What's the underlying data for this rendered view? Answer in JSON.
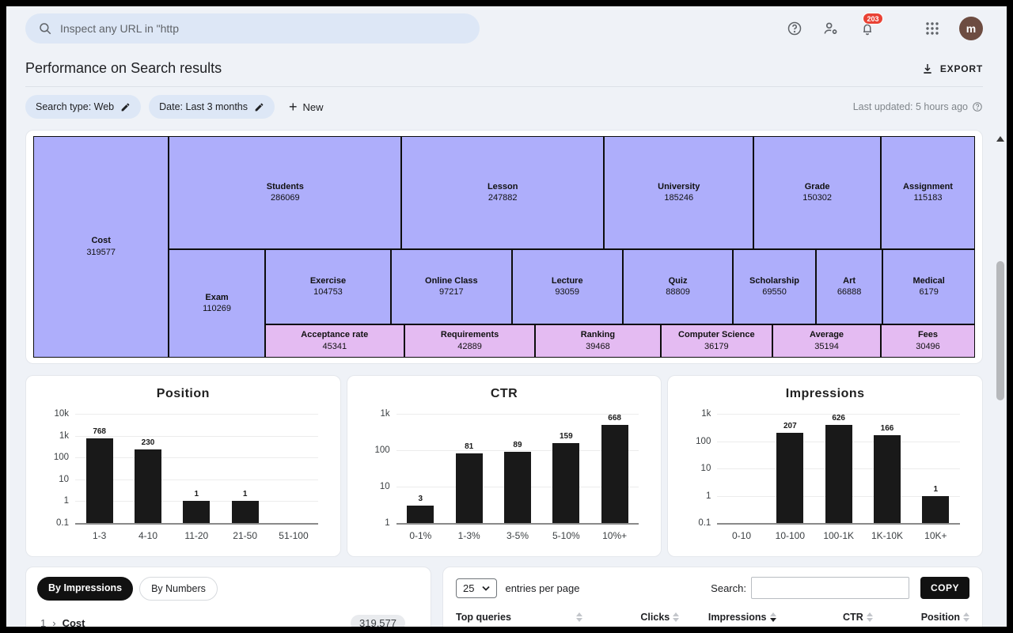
{
  "colors": {
    "treemap_purple": "#aeaefb",
    "treemap_pink": "#e4bbf2",
    "bar_black": "#191919",
    "badge_red": "#e94235",
    "chip_blue": "#dde7f6"
  },
  "topbar": {
    "search_placeholder": "Inspect any URL in \"http",
    "notification_count": "203",
    "avatar_letter": "m"
  },
  "header": {
    "title": "Performance on Search results",
    "export_label": "EXPORT"
  },
  "filters": {
    "chips": [
      {
        "label": "Search type: Web"
      },
      {
        "label": "Date: Last 3 months"
      }
    ],
    "new_label": "New",
    "last_updated": "Last updated: 5 hours ago"
  },
  "treemap": {
    "items": [
      {
        "label": "Cost",
        "value": "319577",
        "tone": "purple"
      },
      {
        "label": "Students",
        "value": "286069",
        "tone": "purple"
      },
      {
        "label": "Lesson",
        "value": "247882",
        "tone": "purple"
      },
      {
        "label": "University",
        "value": "185246",
        "tone": "purple"
      },
      {
        "label": "Grade",
        "value": "150302",
        "tone": "purple"
      },
      {
        "label": "Assignment",
        "value": "115183",
        "tone": "purple"
      },
      {
        "label": "Exam",
        "value": "110269",
        "tone": "purple"
      },
      {
        "label": "Exercise",
        "value": "104753",
        "tone": "purple"
      },
      {
        "label": "Online Class",
        "value": "97217",
        "tone": "purple"
      },
      {
        "label": "Lecture",
        "value": "93059",
        "tone": "purple"
      },
      {
        "label": "Quiz",
        "value": "88809",
        "tone": "purple"
      },
      {
        "label": "Scholarship",
        "value": "69550",
        "tone": "purple"
      },
      {
        "label": "Art",
        "value": "66888",
        "tone": "purple"
      },
      {
        "label": "Medical",
        "value": "6179",
        "tone": "purple"
      },
      {
        "label": "Acceptance rate",
        "value": "45341",
        "tone": "pink"
      },
      {
        "label": "Requirements",
        "value": "42889",
        "tone": "pink"
      },
      {
        "label": "Ranking",
        "value": "39468",
        "tone": "pink"
      },
      {
        "label": "Computer Science",
        "value": "36179",
        "tone": "pink"
      },
      {
        "label": "Average",
        "value": "35194",
        "tone": "pink"
      },
      {
        "label": "Fees",
        "value": "30496",
        "tone": "pink"
      }
    ]
  },
  "chart_data": [
    {
      "type": "bar",
      "title": "Position",
      "categories": [
        "1-3",
        "4-10",
        "11-20",
        "21-50",
        "51-100"
      ],
      "values": [
        768,
        230,
        1,
        1,
        0
      ],
      "yscale": "log",
      "ylim": [
        0.1,
        10000
      ],
      "yticks": [
        {
          "label": "10k",
          "v": 10000
        },
        {
          "label": "1k",
          "v": 1000
        },
        {
          "label": "100",
          "v": 100
        },
        {
          "label": "10",
          "v": 10
        },
        {
          "label": "1",
          "v": 1
        },
        {
          "label": "0.1",
          "v": 0.1
        }
      ],
      "xlabel": "",
      "ylabel": "",
      "grid": true,
      "legend": "none"
    },
    {
      "type": "bar",
      "title": "CTR",
      "categories": [
        "0-1%",
        "1-3%",
        "3-5%",
        "5-10%",
        "10%+"
      ],
      "values": [
        3,
        81,
        89,
        159,
        668
      ],
      "yscale": "log",
      "ylim": [
        1,
        1000
      ],
      "yticks": [
        {
          "label": "1k",
          "v": 1000
        },
        {
          "label": "100",
          "v": 100
        },
        {
          "label": "10",
          "v": 10
        },
        {
          "label": "1",
          "v": 1
        }
      ],
      "xlabel": "",
      "ylabel": "",
      "grid": true,
      "legend": "none"
    },
    {
      "type": "bar",
      "title": "Impressions",
      "categories": [
        "0-10",
        "10-100",
        "100-1K",
        "1K-10K",
        "10K+"
      ],
      "values": [
        0,
        207,
        626,
        166,
        1
      ],
      "yscale": "log",
      "ylim": [
        0.1,
        1000
      ],
      "yticks": [
        {
          "label": "1k",
          "v": 1000
        },
        {
          "label": "100",
          "v": 100
        },
        {
          "label": "10",
          "v": 10
        },
        {
          "label": "1",
          "v": 1
        },
        {
          "label": "0.1",
          "v": 0.1
        }
      ],
      "xlabel": "",
      "ylabel": "",
      "grid": true,
      "legend": "none"
    }
  ],
  "query_panel": {
    "toggle_active": "By Impressions",
    "toggle_inactive": "By Numbers",
    "rows": [
      {
        "index": "1",
        "label": "Cost",
        "value": "319,577"
      }
    ]
  },
  "table": {
    "entries_value": "25",
    "entries_text": "entries per page",
    "search_label": "Search:",
    "copy_label": "COPY",
    "columns": [
      {
        "label": "Top queries",
        "sort": "none"
      },
      {
        "label": "Clicks",
        "sort": "none"
      },
      {
        "label": "Impressions",
        "sort": "desc"
      },
      {
        "label": "CTR",
        "sort": "none"
      },
      {
        "label": "Position",
        "sort": "none"
      }
    ]
  }
}
